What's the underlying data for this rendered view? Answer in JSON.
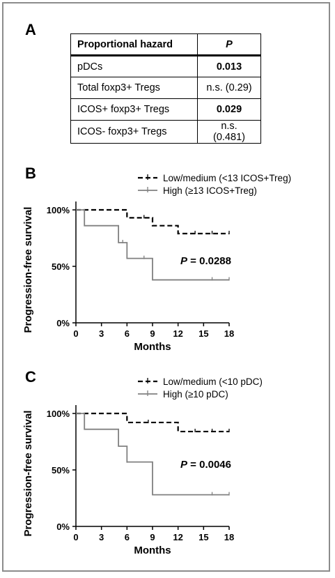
{
  "panel_a": {
    "letter": "A",
    "headers": [
      "Proportional hazard",
      "P"
    ],
    "rows": [
      {
        "label": "pDCs",
        "p": "0.013",
        "bold": true
      },
      {
        "label": "Total foxp3+ Tregs",
        "p": "n.s. (0.29)",
        "bold": false
      },
      {
        "label": "ICOS+ foxp3+ Tregs",
        "p": "0.029",
        "bold": true
      },
      {
        "label": "ICOS- foxp3+ Tregs",
        "p": "n.s. (0.481)",
        "bold": false
      }
    ]
  },
  "chart_data": [
    {
      "letter": "B",
      "type": "line",
      "xlabel": "Months",
      "ylabel": "Progression-free survival",
      "xlim": [
        0,
        18
      ],
      "ylim": [
        0,
        100
      ],
      "x_ticks": [
        0,
        3,
        6,
        9,
        12,
        15,
        18
      ],
      "y_ticks": [
        {
          "value": 0,
          "label": "0%"
        },
        {
          "value": 50,
          "label": "50%"
        },
        {
          "value": 100,
          "label": "100%"
        }
      ],
      "p_label": "P",
      "p_value": " = 0.0288",
      "legend_position": "top-right",
      "series": [
        {
          "name": "Low/medium (<13 ICOS+Treg)",
          "style": "dashed",
          "color": "#000000",
          "steps": [
            [
              0,
              100
            ],
            [
              6,
              93
            ],
            [
              9,
              86
            ],
            [
              12,
              79
            ],
            [
              18,
              79
            ]
          ],
          "censors": [
            [
              8,
              93
            ],
            [
              14,
              79
            ],
            [
              16,
              79
            ],
            [
              18,
              79
            ]
          ]
        },
        {
          "name": "High (≥13 ICOS+Treg)",
          "style": "solid",
          "color": "#808080",
          "steps": [
            [
              0,
              100
            ],
            [
              1,
              86
            ],
            [
              5,
              71
            ],
            [
              6,
              57
            ],
            [
              9,
              38
            ],
            [
              18,
              38
            ]
          ],
          "censors": [
            [
              5.5,
              71
            ],
            [
              8,
              57
            ],
            [
              16,
              38
            ],
            [
              18,
              38
            ]
          ]
        }
      ]
    },
    {
      "letter": "C",
      "type": "line",
      "xlabel": "Months",
      "ylabel": "Progression-free survival",
      "xlim": [
        0,
        18
      ],
      "ylim": [
        0,
        100
      ],
      "x_ticks": [
        0,
        3,
        6,
        9,
        12,
        15,
        18
      ],
      "y_ticks": [
        {
          "value": 0,
          "label": "0%"
        },
        {
          "value": 50,
          "label": "50%"
        },
        {
          "value": 100,
          "label": "100%"
        }
      ],
      "p_label": "P",
      "p_value": " = 0.0046",
      "legend_position": "top-right",
      "series": [
        {
          "name": "Low/medium (<10 pDC)",
          "style": "dashed",
          "color": "#000000",
          "steps": [
            [
              0,
              100
            ],
            [
              6,
              92
            ],
            [
              12,
              84
            ],
            [
              18,
              84
            ]
          ],
          "censors": [
            [
              8.5,
              92
            ],
            [
              14,
              84
            ],
            [
              16,
              84
            ],
            [
              18,
              84
            ]
          ]
        },
        {
          "name": "High (≥10 pDC)",
          "style": "solid",
          "color": "#808080",
          "steps": [
            [
              0,
              100
            ],
            [
              1,
              86
            ],
            [
              5,
              71
            ],
            [
              6,
              57
            ],
            [
              9,
              28
            ],
            [
              18,
              28
            ]
          ],
          "censors": [
            [
              6,
              57
            ],
            [
              16,
              28
            ],
            [
              18,
              28
            ]
          ]
        }
      ]
    }
  ]
}
